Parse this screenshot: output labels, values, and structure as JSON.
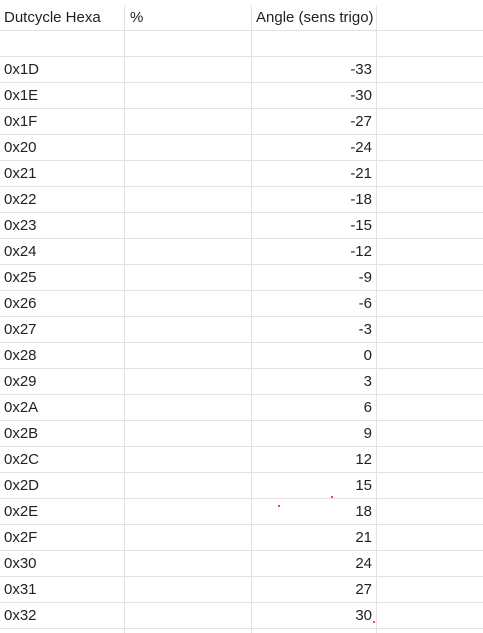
{
  "headers": {
    "col_a": "Dutcycle Hexa",
    "col_b": "%",
    "col_c": "Angle (sens trigo)"
  },
  "rows": [
    {
      "hex": "0x1D",
      "angle": "-33"
    },
    {
      "hex": "0x1E",
      "angle": "-30"
    },
    {
      "hex": "0x1F",
      "angle": "-27"
    },
    {
      "hex": "0x20",
      "angle": "-24"
    },
    {
      "hex": "0x21",
      "angle": "-21"
    },
    {
      "hex": "0x22",
      "angle": "-18"
    },
    {
      "hex": "0x23",
      "angle": "-15"
    },
    {
      "hex": "0x24",
      "angle": "-12"
    },
    {
      "hex": "0x25",
      "angle": "-9"
    },
    {
      "hex": "0x26",
      "angle": "-6"
    },
    {
      "hex": "0x27",
      "angle": "-3"
    },
    {
      "hex": "0x28",
      "angle": "0"
    },
    {
      "hex": "0x29",
      "angle": "3"
    },
    {
      "hex": "0x2A",
      "angle": "6"
    },
    {
      "hex": "0x2B",
      "angle": "9"
    },
    {
      "hex": "0x2C",
      "angle": "12"
    },
    {
      "hex": "0x2D",
      "angle": "15"
    },
    {
      "hex": "0x2E",
      "angle": "18"
    },
    {
      "hex": "0x2F",
      "angle": "21"
    },
    {
      "hex": "0x30",
      "angle": "24"
    },
    {
      "hex": "0x31",
      "angle": "27"
    },
    {
      "hex": "0x32",
      "angle": "30"
    }
  ],
  "colors": {
    "gridline": "#e2e2e2",
    "text": "#222222",
    "marker_dot": "#e0161b"
  }
}
